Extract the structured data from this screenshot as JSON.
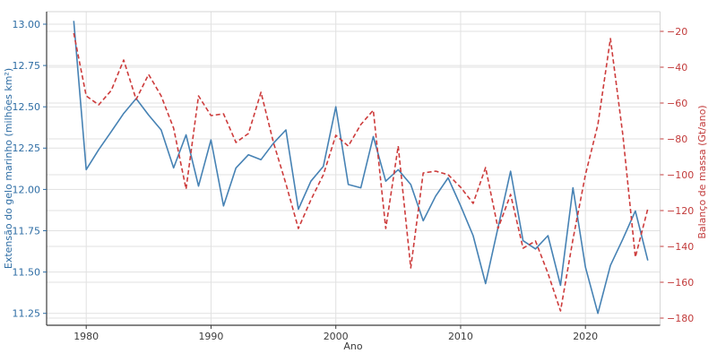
{
  "chart_data": {
    "type": "line",
    "title": "",
    "xlabel": "Ano",
    "ylabel_left": "Extensão do gelo marinho (milhões km²)",
    "ylabel_right": "Balanço de massa (Gt/ano)",
    "x": [
      1979,
      1980,
      1981,
      1982,
      1983,
      1984,
      1985,
      1986,
      1987,
      1988,
      1989,
      1990,
      1991,
      1992,
      1993,
      1994,
      1995,
      1996,
      1997,
      1998,
      1999,
      2000,
      2001,
      2002,
      2003,
      2004,
      2005,
      2006,
      2007,
      2008,
      2009,
      2010,
      2011,
      2012,
      2013,
      2014,
      2015,
      2016,
      2017,
      2018,
      2019,
      2020,
      2021,
      2022,
      2023,
      2024,
      2025
    ],
    "series": [
      {
        "name": "Extensão do gelo marinho (milhões km²)",
        "axis": "left",
        "color": "#4682b4",
        "line_style": "solid",
        "values": [
          13.02,
          12.12,
          12.24,
          12.35,
          12.46,
          12.55,
          12.45,
          12.36,
          12.13,
          12.33,
          12.02,
          12.3,
          11.9,
          12.13,
          12.21,
          12.18,
          12.28,
          12.36,
          11.88,
          12.05,
          12.14,
          12.5,
          12.03,
          12.01,
          12.32,
          12.05,
          12.12,
          12.03,
          11.81,
          11.96,
          12.07,
          11.9,
          11.72,
          11.43,
          11.77,
          12.11,
          11.69,
          11.64,
          11.72,
          11.42,
          12.01,
          11.53,
          11.25,
          11.54,
          11.7,
          11.87,
          11.57
        ]
      },
      {
        "name": "Balanço de massa (Gt/ano)",
        "axis": "right",
        "color": "#cd3c3c",
        "line_style": "dashed",
        "values": [
          -21,
          -56,
          -61,
          -53,
          -36,
          -58,
          -44,
          -56,
          -74,
          -108,
          -56,
          -67,
          -66,
          -82,
          -77,
          -54,
          -82,
          -105,
          -130,
          -114,
          -100,
          -78,
          -84,
          -72,
          -64,
          -130,
          -84,
          -152,
          -99,
          -98,
          -100,
          -107,
          -116,
          -96,
          -130,
          -111,
          -141,
          -137,
          -155,
          -176,
          -136,
          -100,
          -72,
          -24,
          -78,
          -146,
          -119
        ]
      }
    ],
    "xticks": [
      1980,
      1990,
      2000,
      2010,
      2020
    ],
    "xtick_labels": [
      "1980",
      "1990",
      "2000",
      "2010",
      "2020"
    ],
    "yticks_left": [
      13.0,
      12.75,
      12.5,
      12.25,
      12.0,
      11.75,
      11.5,
      11.25
    ],
    "ytick_labels_left": [
      "13.00",
      "12.75",
      "12.50",
      "12.25",
      "12.00",
      "11.75",
      "11.50",
      "11.25"
    ],
    "yticks_right": [
      -20,
      -40,
      -60,
      -80,
      -100,
      -120,
      -140,
      -160,
      -180
    ],
    "ytick_labels_right": [
      "−20",
      "−40",
      "−60",
      "−80",
      "−100",
      "−120",
      "−140",
      "−160",
      "−180"
    ],
    "ylim_left": [
      11.1,
      13.08
    ],
    "ylim_right": [
      -184,
      -9.5
    ],
    "grid": true,
    "legend": "none",
    "colors": {
      "left_axis_text": "#2e6da4",
      "right_axis_text": "#c23b3b",
      "x_axis_text": "#3c3c3c",
      "gridline": "#e1e1e1",
      "spine": "#3c3c3c",
      "background": "#ffffff"
    }
  }
}
